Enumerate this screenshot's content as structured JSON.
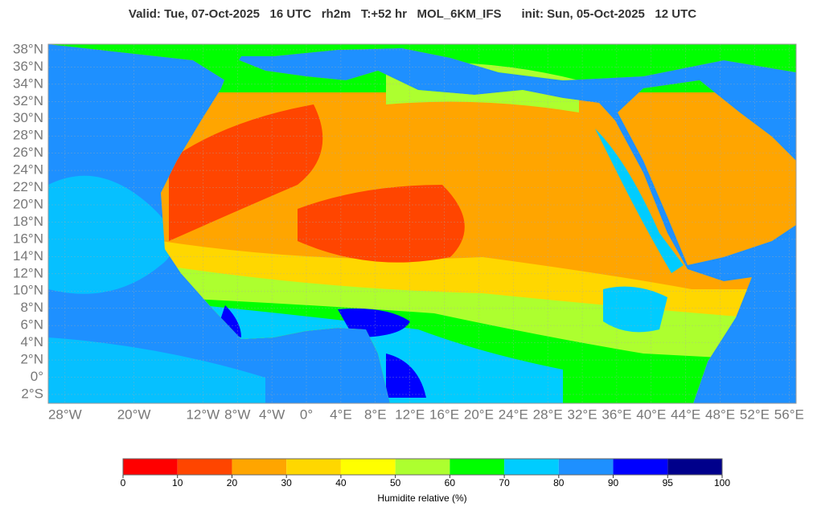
{
  "title": "Valid: Tue, 07-Oct-2025   16 UTC   rh2m   T:+52 hr   MOL_6KM_IFS      init: Sun, 05-Oct-2025   12 UTC",
  "lat_labels": [
    "38°N",
    "36°N",
    "34°N",
    "32°N",
    "30°N",
    "28°N",
    "26°N",
    "24°N",
    "22°N",
    "20°N",
    "18°N",
    "16°N",
    "14°N",
    "12°N",
    "10°N",
    "8°N",
    "6°N",
    "4°N",
    "2°N",
    "0°",
    "2°S"
  ],
  "lon_labels": [
    "28°W",
    "20°W",
    "12°W",
    "8°W",
    "4°W",
    "0°",
    "4°E",
    "8°E",
    "12°E",
    "16°E",
    "20°E",
    "24°E",
    "28°E",
    "32°E",
    "36°E",
    "40°E",
    "44°E",
    "48°E",
    "52°E",
    "56°E"
  ],
  "colorbar": {
    "label": "Humidite relative (%)",
    "ticks": [
      0,
      10,
      20,
      30,
      40,
      50,
      60,
      70,
      80,
      90,
      95,
      100
    ],
    "colors": [
      "#ff0000",
      "#ff4500",
      "#ffa500",
      "#ffd700",
      "#ffff00",
      "#adff2f",
      "#00ff00",
      "#00ccff",
      "#1e90ff",
      "#0000ff",
      "#00008b"
    ]
  }
}
